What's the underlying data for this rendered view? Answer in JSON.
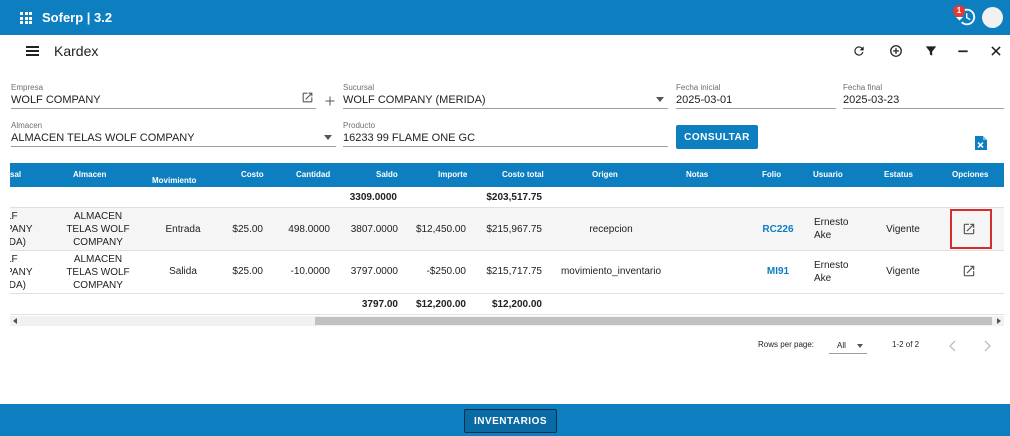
{
  "app": {
    "title": "Soferp | 3.2",
    "notification_count": "1"
  },
  "page": {
    "title": "Kardex"
  },
  "filters": {
    "empresa": {
      "label": "Empresa",
      "value": "WOLF COMPANY"
    },
    "sucursal": {
      "label": "Sucursal",
      "value": "WOLF COMPANY (MERIDA)"
    },
    "fecha_inicial": {
      "label": "Fecha inicial",
      "value": "2025-03-01"
    },
    "fecha_final": {
      "label": "Fecha final",
      "value": "2025-03-23"
    },
    "almacen": {
      "label": "Almacen",
      "value": "ALMACEN TELAS WOLF COMPANY"
    },
    "producto": {
      "label": "Producto",
      "value": "16233 99 FLAME ONE GC"
    },
    "consultar_label": "CONSULTAR"
  },
  "table": {
    "headers": {
      "sucursal": "sal",
      "almacen": "Almacen",
      "movimiento": "Movimiento",
      "costo": "Costo",
      "cantidad": "Cantidad",
      "saldo": "Saldo",
      "importe": "Importe",
      "costo_total": "Costo total",
      "origen": "Origen",
      "notas": "Notas",
      "folio": "Folio",
      "usuario": "Usuario",
      "estatus": "Estatus",
      "opciones": "Opciones"
    },
    "opening": {
      "saldo": "3309.0000",
      "costo_total": "$203,517.75"
    },
    "rows": [
      {
        "sucursal_lines": [
          "LF",
          "PANY",
          "IDA)"
        ],
        "almacen_lines": [
          "ALMACEN",
          "TELAS WOLF",
          "COMPANY"
        ],
        "movimiento": "Entrada",
        "costo": "$25.00",
        "cantidad": "498.0000",
        "saldo": "3807.0000",
        "importe": "$12,450.00",
        "costo_total": "$215,967.75",
        "origen": "recepcion",
        "notas": "",
        "folio": "RC226",
        "usuario_lines": [
          "Ernesto",
          "Ake"
        ],
        "estatus": "Vigente"
      },
      {
        "sucursal_lines": [
          "LF",
          "PANY",
          "IDA)"
        ],
        "almacen_lines": [
          "ALMACEN",
          "TELAS WOLF",
          "COMPANY"
        ],
        "movimiento": "Salida",
        "costo": "$25.00",
        "cantidad": "-10.0000",
        "saldo": "3797.0000",
        "importe": "-$250.00",
        "costo_total": "$215,717.75",
        "origen": "movimiento_inventario",
        "notas": "",
        "folio": "MI91",
        "usuario_lines": [
          "Ernesto",
          "Ake"
        ],
        "estatus": "Vigente"
      }
    ],
    "totals": {
      "saldo": "3797.00",
      "importe": "$12,200.00",
      "costo_total": "$12,200.00"
    }
  },
  "pagination": {
    "rows_per_page_label": "Rows per page:",
    "rows_per_page_value": "All",
    "range": "1-2 of 2"
  },
  "footer": {
    "inventarios_label": "INVENTARIOS"
  },
  "colors": {
    "primary": "#0d7fc1",
    "highlight": "#d32f2f"
  }
}
